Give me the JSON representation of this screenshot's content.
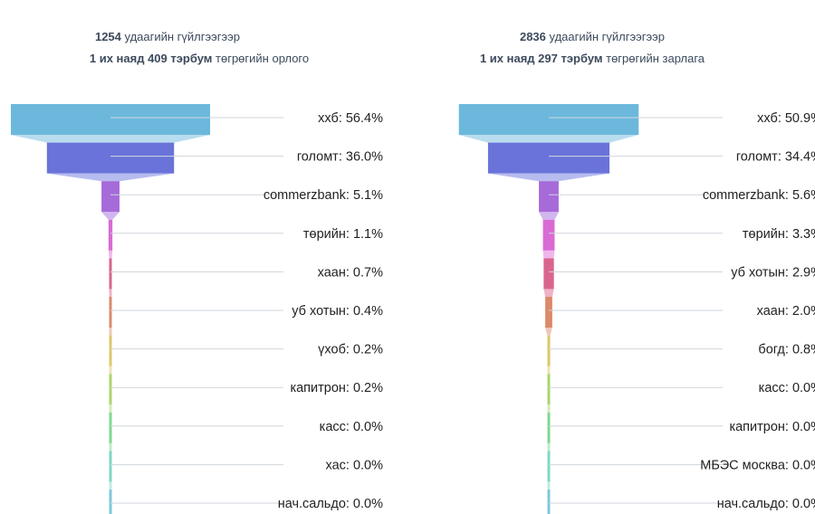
{
  "chart_data": [
    {
      "type": "funnel",
      "title": {
        "line1": {
          "count": "1254",
          "suffix": " удаагийн гүйлгээгээр"
        },
        "line2": {
          "bold": "1 их наяд 409 тэрбум",
          "suffix": " төгрөгийн орлого"
        }
      },
      "categories": [
        "ххб",
        "голомт",
        "commerzbank",
        "төрийн",
        "хаан",
        "уб хотын",
        "үхоб",
        "капитрон",
        "касс",
        "хас",
        "нач.сальдо"
      ],
      "values": [
        56.4,
        36.0,
        5.1,
        1.1,
        0.7,
        0.4,
        0.2,
        0.2,
        0.0,
        0.0,
        0.0
      ],
      "labels": [
        "ххб: 56.4%",
        "голомт: 36.0%",
        "commerzbank: 5.1%",
        "төрийн: 1.1%",
        "хаан: 0.7%",
        "уб хотын: 0.4%",
        "үхоб: 0.2%",
        "капитрон: 0.2%",
        "касс: 0.0%",
        "хас: 0.0%",
        "нач.сальдо: 0.0%"
      ],
      "unit": "%"
    },
    {
      "type": "funnel",
      "title": {
        "line1": {
          "count": "2836",
          "suffix": " удаагийн гүйлгээгээр"
        },
        "line2": {
          "bold": "1 их наяд 297 тэрбум",
          "suffix": " төгрөгийн зарлага"
        }
      },
      "categories": [
        "ххб",
        "голомт",
        "commerzbank",
        "төрийн",
        "уб хотын",
        "хаан",
        "богд",
        "касс",
        "капитрон",
        "МБЭС москва",
        "нач.сальдо"
      ],
      "values": [
        50.9,
        34.4,
        5.6,
        3.3,
        2.9,
        2.0,
        0.8,
        0.0,
        0.0,
        0.0,
        0.0
      ],
      "labels": [
        "ххб: 50.9%",
        "голомт: 34.4%",
        "commerzbank: 5.6%",
        "төрийн: 3.3%",
        "уб хотын: 2.9%",
        "хаан: 2.0%",
        "богд: 0.8%",
        "касс: 0.0%",
        "капитрон: 0.0%",
        "МБЭС москва: 0.0%",
        "нач.сальдо: 0.0%"
      ],
      "unit": "%"
    }
  ],
  "colors": [
    "#6cb8dc",
    "#6a73d9",
    "#a66ad9",
    "#d96ad3",
    "#d9658e",
    "#db8a6a",
    "#dcc96a",
    "#aad66c",
    "#7ed98e",
    "#7ed8c2",
    "#7ec8dc"
  ],
  "connector_colors": [
    "#b9dcef",
    "#b7bcef",
    "#d2b6ef",
    "#efb6ea",
    "#efb3c8",
    "#efc6b5",
    "#eee3b5",
    "#d5ebb5",
    "#bfecc6",
    "#bfece1",
    "#bfe6ef"
  ]
}
